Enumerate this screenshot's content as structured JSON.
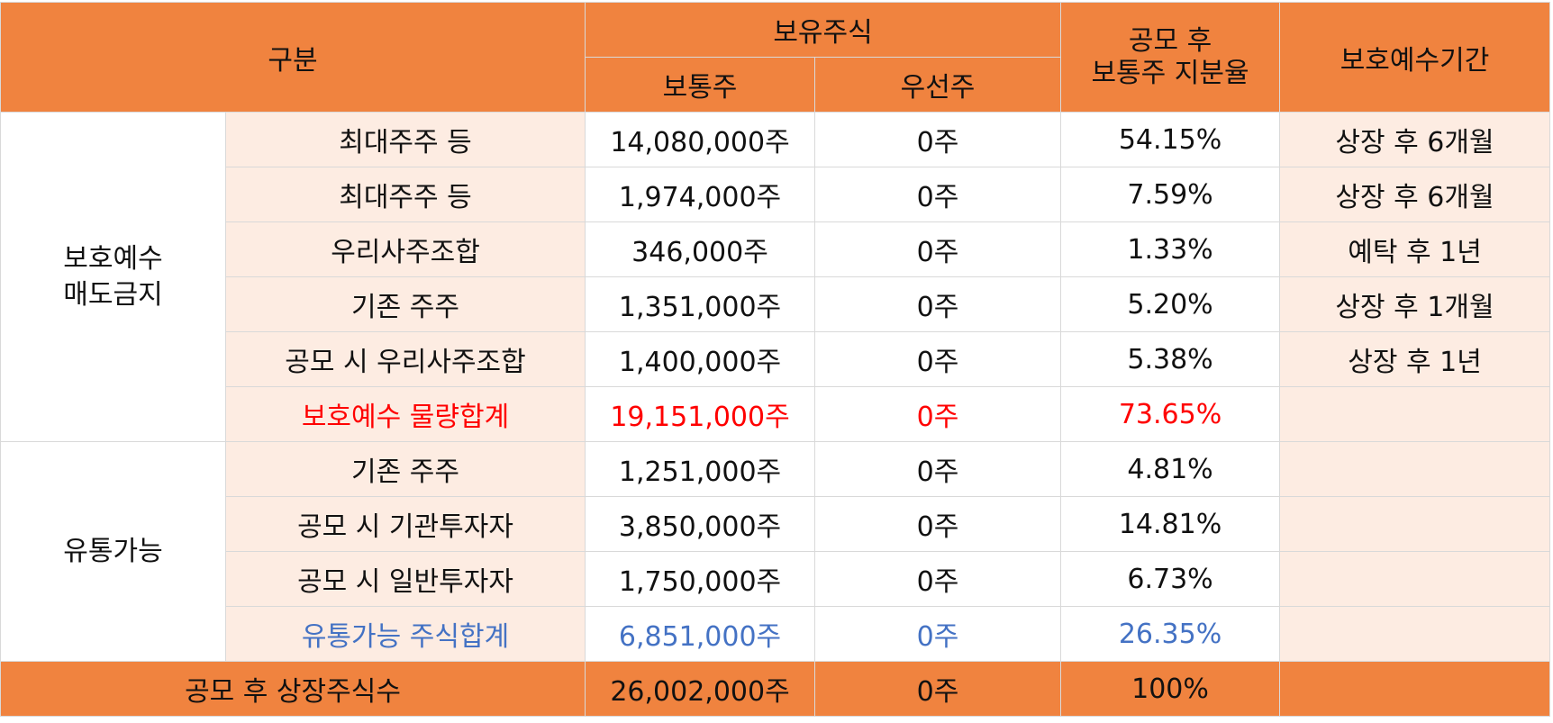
{
  "header": {
    "category": "구분",
    "holdings": "보유주식",
    "common": "보통주",
    "preferred": "우선주",
    "share_after_ipo_line1": "공모 후",
    "share_after_ipo_line2": "보통주 지분율",
    "lockup_period": "보호예수기간"
  },
  "groups": {
    "locked_line1": "보호예수",
    "locked_line2": "매도금지",
    "tradable": "유통가능"
  },
  "rows": [
    {
      "label": "최대주주 등",
      "common": "14,080,000주",
      "preferred": "0주",
      "ratio": "54.15%",
      "period": "상장 후 6개월"
    },
    {
      "label": "최대주주 등",
      "common": "1,974,000주",
      "preferred": "0주",
      "ratio": "7.59%",
      "period": "상장 후 6개월"
    },
    {
      "label": "우리사주조합",
      "common": "346,000주",
      "preferred": "0주",
      "ratio": "1.33%",
      "period": "예탁 후 1년"
    },
    {
      "label": "기존 주주",
      "common": "1,351,000주",
      "preferred": "0주",
      "ratio": "5.20%",
      "period": "상장 후 1개월"
    },
    {
      "label": "공모 시 우리사주조합",
      "common": "1,400,000주",
      "preferred": "0주",
      "ratio": "5.38%",
      "period": "상장 후 1년"
    },
    {
      "label": "보호예수 물량합계",
      "common": "19,151,000주",
      "preferred": "0주",
      "ratio": "73.65%",
      "period": ""
    },
    {
      "label": "기존 주주",
      "common": "1,251,000주",
      "preferred": "0주",
      "ratio": "4.81%",
      "period": ""
    },
    {
      "label": "공모 시 기관투자자",
      "common": "3,850,000주",
      "preferred": "0주",
      "ratio": "14.81%",
      "period": ""
    },
    {
      "label": "공모 시 일반투자자",
      "common": "1,750,000주",
      "preferred": "0주",
      "ratio": "6.73%",
      "period": ""
    },
    {
      "label": "유통가능 주식합계",
      "common": "6,851,000주",
      "preferred": "0주",
      "ratio": "26.35%",
      "period": ""
    }
  ],
  "total": {
    "label": "공모 후 상장주식수",
    "common": "26,002,000주",
    "preferred": "0주",
    "ratio": "100%",
    "period": ""
  },
  "colors": {
    "header_bg": "#f0833f",
    "sub_bg": "#fdece2",
    "locked_total_text": "#ff0000",
    "tradable_total_text": "#4472c4"
  }
}
